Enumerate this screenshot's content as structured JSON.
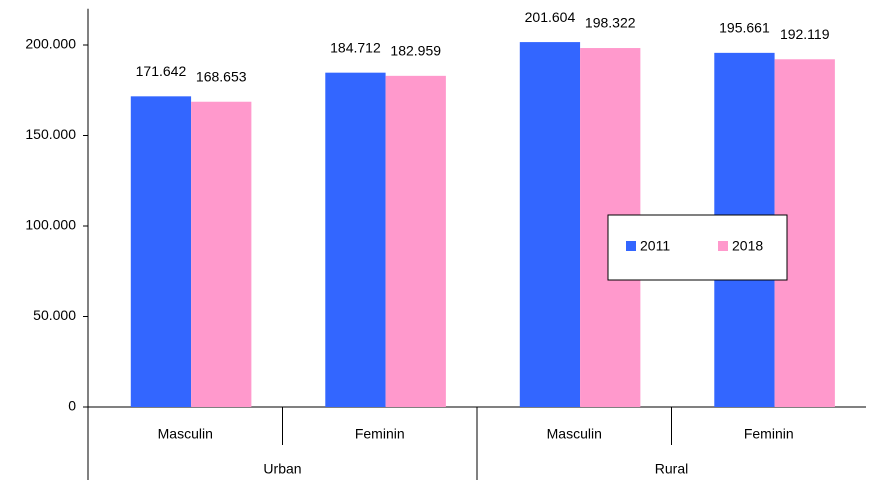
{
  "chart_data": {
    "type": "bar",
    "groups": [
      {
        "name": "Urban",
        "categories": [
          "Masculin",
          "Feminin"
        ]
      },
      {
        "name": "Rural",
        "categories": [
          "Masculin",
          "Feminin"
        ]
      }
    ],
    "series": [
      {
        "name": "2011",
        "color": "#3366ff",
        "values": [
          171642,
          184712,
          201604,
          195661
        ],
        "value_labels": [
          "171.642",
          "184.712",
          "201.604",
          "195.661"
        ]
      },
      {
        "name": "2018",
        "color": "#ff99cc",
        "values": [
          168653,
          182959,
          198322,
          192119
        ],
        "value_labels": [
          "168.653",
          "182.959",
          "198.322",
          "192.119"
        ]
      }
    ],
    "ylim": [
      0,
      220000
    ],
    "yticks": [
      0,
      {
        "value": 50000,
        "label": "50.000"
      },
      {
        "value": 100000,
        "label": "100.000"
      },
      {
        "value": 150000,
        "label": "150.000"
      },
      {
        "value": 200000,
        "label": "200.000"
      }
    ],
    "grid": false,
    "legend_position": "right"
  }
}
